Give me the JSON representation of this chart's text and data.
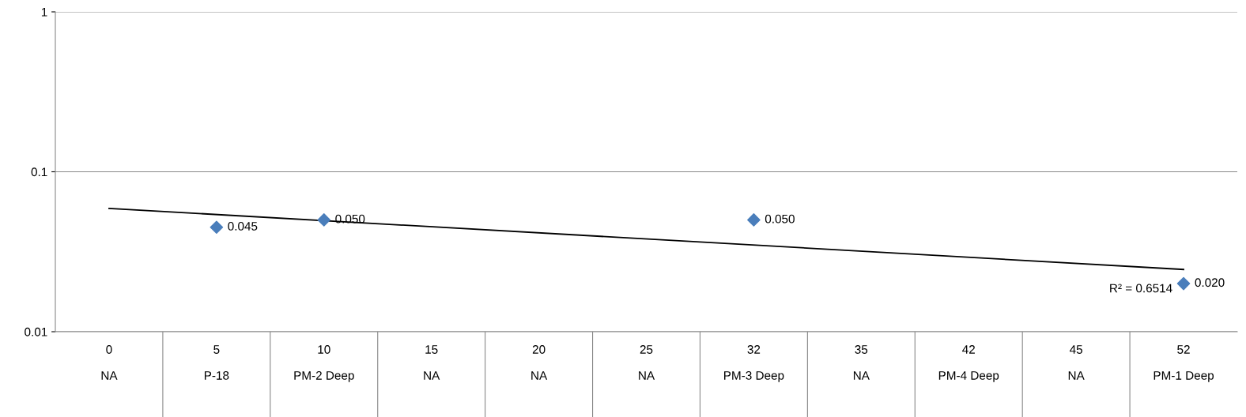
{
  "chart_data": {
    "type": "scatter",
    "categories": [
      "0\n\nNA",
      "5\n\nP-18",
      "10\n\nPM-2 Deep",
      "15\n\nNA",
      "20\n\nNA",
      "25\n\nNA",
      "32\n\nPM-3 Deep",
      "35\n\nNA",
      "42\n\nPM-4 Deep",
      "45\n\nNA",
      "52\n\nPM-1 Deep"
    ],
    "series": [
      {
        "color": "#4a7ebb",
        "marker": "diamond",
        "values": [
          null,
          0.045,
          0.05,
          null,
          null,
          null,
          0.05,
          null,
          null,
          null,
          0.02
        ],
        "value_labels": [
          null,
          "0.045",
          "0.050",
          null,
          null,
          null,
          "0.050",
          null,
          null,
          null,
          "0.020"
        ]
      },
      {
        "type": "line",
        "color": "#000000",
        "marker": "none",
        "line_style": "solid",
        "values": [
          0.059,
          null,
          null,
          null,
          null,
          null,
          null,
          null,
          null,
          null,
          0.0245
        ]
      }
    ],
    "log": "y",
    "ylim": [
      0.01,
      1
    ],
    "yticks": [
      0.01,
      0.1,
      1
    ],
    "grid": "y",
    "annotations": [
      {
        "text": "R² = 0.6514",
        "x": "52\n\nPM-1 Deep",
        "y": 0.0245
      }
    ]
  }
}
